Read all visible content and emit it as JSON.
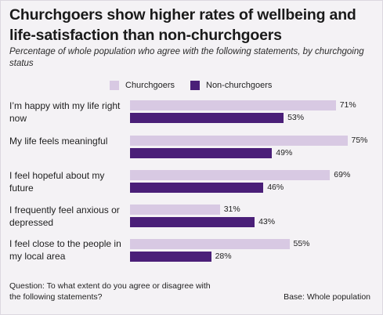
{
  "title": "Churchgoers show higher rates of wellbeing and life-satisfaction than non-churchgoers",
  "subtitle": "Percentage of whole population who agree with the following statements, by churchgoing status",
  "colors": {
    "churchgoers": "#d8c9e3",
    "non_churchgoers": "#4a1f78",
    "background": "#f4f2f5"
  },
  "footer": {
    "question": "Question: To what extent do you agree or disagree with the following statements?",
    "base": "Base: Whole population"
  },
  "chart_data": {
    "type": "bar",
    "orientation": "horizontal",
    "categories": [
      "I’m happy with my life right now",
      "My life feels meaningful",
      "I feel hopeful about my future",
      "I frequently feel anxious or depressed",
      "I feel close to the people in my local area"
    ],
    "series": [
      {
        "name": "Churchgoers",
        "values": [
          71,
          75,
          69,
          31,
          55
        ],
        "labels": [
          "71%",
          "75%",
          "69%",
          "31%",
          "55%"
        ]
      },
      {
        "name": "Non-churchgoers",
        "values": [
          53,
          49,
          46,
          43,
          28
        ],
        "labels": [
          "53%",
          "49%",
          "46%",
          "43%",
          "28%"
        ]
      }
    ],
    "unit": "%",
    "xlim": [
      0,
      100
    ],
    "legend_position": "top",
    "grid": false
  }
}
